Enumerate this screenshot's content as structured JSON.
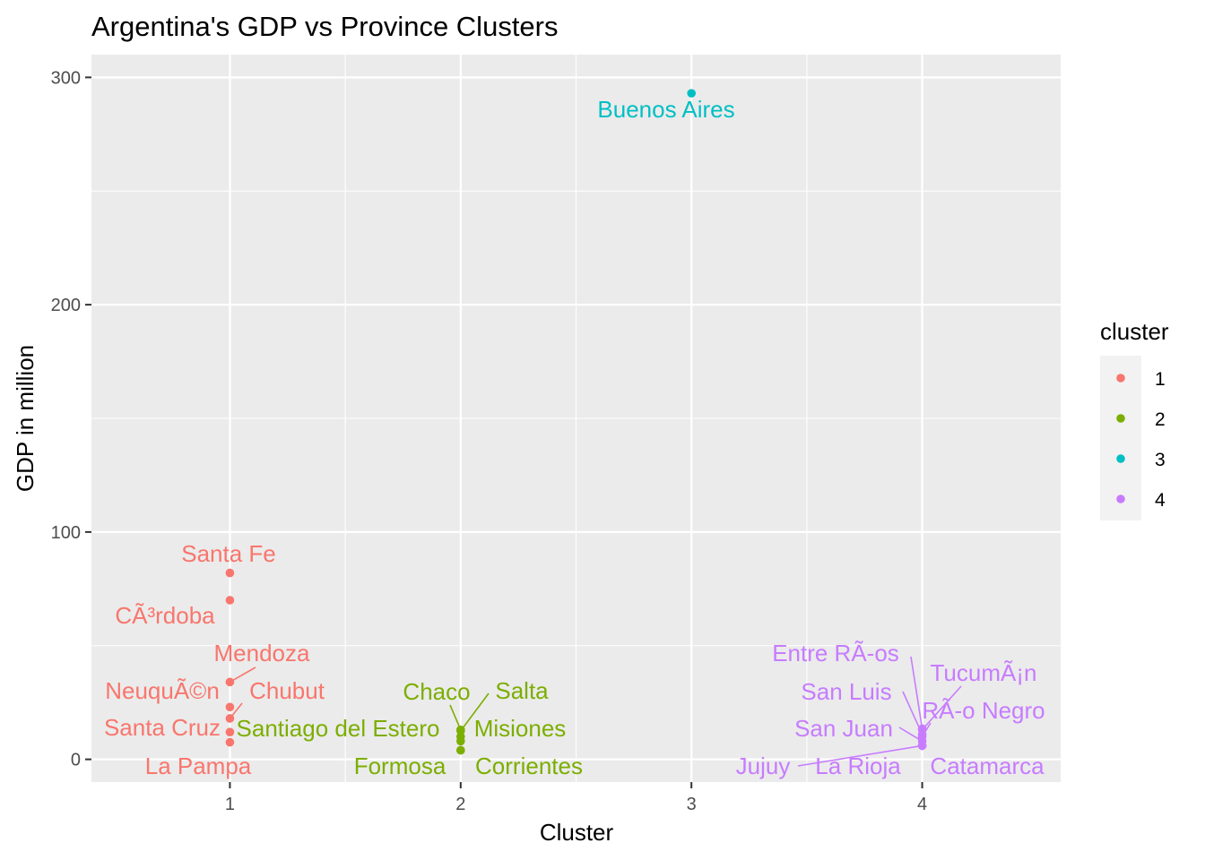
{
  "chart_data": {
    "type": "scatter",
    "title": "Argentina's GDP vs Province Clusters",
    "xlabel": "Cluster",
    "ylabel": "GDP in million",
    "xlim": [
      0.4,
      4.6
    ],
    "ylim": [
      -10,
      310
    ],
    "x_ticks": [
      1,
      2,
      3,
      4
    ],
    "y_ticks": [
      0,
      100,
      200,
      300
    ],
    "grid": true,
    "legend": {
      "title": "cluster",
      "placement": "right",
      "entries": [
        {
          "label": "1",
          "color": "#F8766D"
        },
        {
          "label": "2",
          "color": "#7CAE00"
        },
        {
          "label": "3",
          "color": "#00BFC4"
        },
        {
          "label": "4",
          "color": "#C77CFF"
        }
      ]
    },
    "points": [
      {
        "label": "Santa Fe",
        "cluster": 1,
        "x": 1,
        "y": 82
      },
      {
        "label": "CÃ³rdoba",
        "cluster": 1,
        "x": 1,
        "y": 70
      },
      {
        "label": "Mendoza",
        "cluster": 1,
        "x": 1,
        "y": 34
      },
      {
        "label": "NeuquÃ©n",
        "cluster": 1,
        "x": 1,
        "y": 23
      },
      {
        "label": "Chubut",
        "cluster": 1,
        "x": 1,
        "y": 18
      },
      {
        "label": "Santa Cruz",
        "cluster": 1,
        "x": 1,
        "y": 12
      },
      {
        "label": "La Pampa",
        "cluster": 1,
        "x": 1,
        "y": 7.5
      },
      {
        "label": "Chaco",
        "cluster": 2,
        "x": 2,
        "y": 13
      },
      {
        "label": "Salta",
        "cluster": 2,
        "x": 2,
        "y": 12.5
      },
      {
        "label": "Santiago del Estero",
        "cluster": 2,
        "x": 2,
        "y": 10
      },
      {
        "label": "Misiones",
        "cluster": 2,
        "x": 2,
        "y": 8
      },
      {
        "label": "Formosa",
        "cluster": 2,
        "x": 2,
        "y": 4
      },
      {
        "label": "Corrientes",
        "cluster": 2,
        "x": 2,
        "y": 4
      },
      {
        "label": "Buenos Aires",
        "cluster": 3,
        "x": 3,
        "y": 293
      },
      {
        "label": "Entre RÃ-os",
        "cluster": 4,
        "x": 4,
        "y": 13.5
      },
      {
        "label": "TucumÃ¡n",
        "cluster": 4,
        "x": 4,
        "y": 13
      },
      {
        "label": "San Luis",
        "cluster": 4,
        "x": 4,
        "y": 11
      },
      {
        "label": "RÃ-o Negro",
        "cluster": 4,
        "x": 4,
        "y": 10
      },
      {
        "label": "San Juan",
        "cluster": 4,
        "x": 4,
        "y": 8
      },
      {
        "label": "Jujuy",
        "cluster": 4,
        "x": 4,
        "y": 6
      },
      {
        "label": "La Rioja",
        "cluster": 4,
        "x": 4,
        "y": 6
      },
      {
        "label": "Catamarca",
        "cluster": 4,
        "x": 4,
        "y": 6
      }
    ]
  }
}
